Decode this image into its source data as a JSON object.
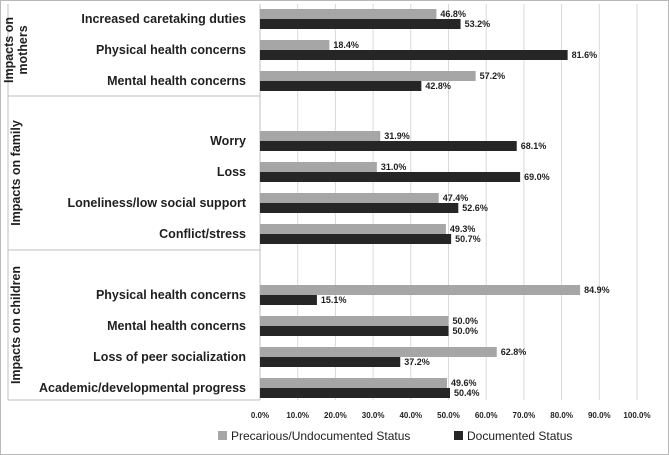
{
  "chart_data": {
    "type": "bar",
    "orientation": "horizontal",
    "title": "",
    "xlabel": "",
    "ylabel": "",
    "xlim": [
      0,
      100
    ],
    "x_ticks": [
      "0.0%",
      "10.0%",
      "20.0%",
      "30.0%",
      "40.0%",
      "50.0%",
      "60.0%",
      "70.0%",
      "80.0%",
      "90.0%",
      "100.0%"
    ],
    "grid": true,
    "legend_position": "bottom",
    "groups": [
      {
        "name": "Impacts on mothers",
        "label_lines": [
          "Impacts on",
          "mothers"
        ],
        "categories": [
          "Increased caretaking duties",
          "Physical health concerns",
          "Mental health concerns"
        ]
      },
      {
        "name": "Impacts on family",
        "label_lines": [
          "Impacts on family"
        ],
        "categories": [
          "Worry",
          "Loss",
          "Loneliness/low social support",
          "Conflict/stress"
        ]
      },
      {
        "name": "Impacts on children",
        "label_lines": [
          "Impacts on children"
        ],
        "categories": [
          "Physical health concerns",
          "Mental health concerns",
          "Loss of peer socialization",
          "Academic/developmental progress"
        ]
      }
    ],
    "series": [
      {
        "name": "Precarious/Undocumented Status",
        "color": "#a6a6a6",
        "values": [
          46.8,
          18.4,
          57.2,
          31.9,
          31.0,
          47.4,
          49.3,
          84.9,
          50.0,
          62.8,
          49.6
        ],
        "labels": [
          "46.8%",
          "18.4%",
          "57.2%",
          "31.9%",
          "31.0%",
          "47.4%",
          "49.3%",
          "84.9%",
          "50.0%",
          "62.8%",
          "49.6%"
        ]
      },
      {
        "name": "Documented Status",
        "color": "#262626",
        "values": [
          53.2,
          81.6,
          42.8,
          68.1,
          69.0,
          52.6,
          50.7,
          15.1,
          50.0,
          37.2,
          50.4
        ],
        "labels": [
          "53.2%",
          "81.6%",
          "42.8%",
          "68.1%",
          "69.0%",
          "52.6%",
          "50.7%",
          "15.1%",
          "50.0%",
          "37.2%",
          "50.4%"
        ]
      }
    ]
  }
}
